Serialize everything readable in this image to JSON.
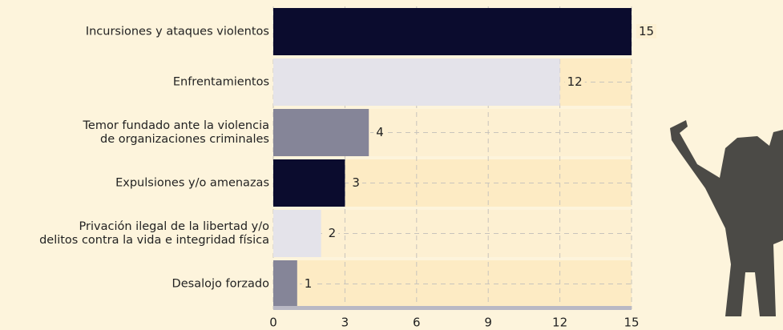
{
  "chart_data": {
    "type": "bar",
    "orientation": "horizontal",
    "categories": [
      "Incursiones y ataques violentos",
      "Enfrentamientos",
      "Temor fundado ante la violencia\nde organizaciones criminales",
      "Expulsiones y/o amenazas",
      "Privación ilegal de la libertad y/o\ndelitos contra la vida e integridad física",
      "Desalojo forzado"
    ],
    "values": [
      15,
      12,
      4,
      3,
      2,
      1
    ],
    "colors": [
      "#0b0c2e",
      "#e4e3ea",
      "#858598",
      "#0b0c2e",
      "#e4e3ea",
      "#858598"
    ],
    "xlim": [
      0,
      15
    ],
    "xticks": [
      0,
      3,
      6,
      9,
      12,
      15
    ],
    "grid": true
  }
}
